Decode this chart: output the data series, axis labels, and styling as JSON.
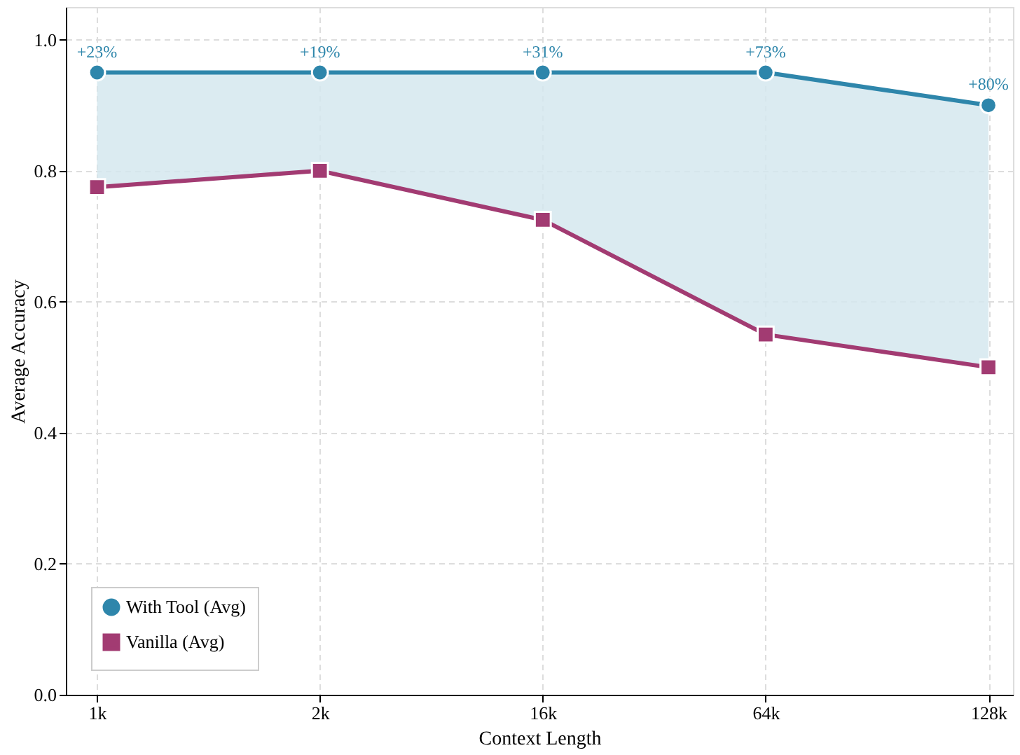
{
  "chart_data": {
    "type": "line",
    "xlabel": "Context Length",
    "ylabel": "Average Accuracy",
    "categories": [
      "1k",
      "2k",
      "16k",
      "64k",
      "128k"
    ],
    "series": [
      {
        "name": "With Tool (Avg)",
        "color": "#2e86ab",
        "marker": "circle",
        "values": [
          0.95,
          0.95,
          0.95,
          0.95,
          0.9
        ],
        "lower": [
          0.775,
          0.8,
          0.725,
          0.55,
          0.5
        ],
        "upper": [
          0.95,
          0.95,
          0.95,
          0.95,
          0.9
        ]
      },
      {
        "name": "Vanilla (Avg)",
        "color": "#a23b72",
        "marker": "square",
        "values": [
          0.775,
          0.8,
          0.725,
          0.55,
          0.5
        ]
      }
    ],
    "annotations": [
      {
        "text": "+23%",
        "x": "1k",
        "y": 0.95
      },
      {
        "text": "+19%",
        "x": "2k",
        "y": 0.95
      },
      {
        "text": "+31%",
        "x": "16k",
        "y": 0.95
      },
      {
        "text": "+73%",
        "x": "64k",
        "y": 0.95
      },
      {
        "text": "+80%",
        "x": "128k",
        "y": 0.9
      }
    ],
    "ylim": [
      0,
      1.05
    ],
    "yticks": [
      {
        "value": 0,
        "label": "0.0"
      },
      {
        "value": 0.2,
        "label": "0.2"
      },
      {
        "value": 0.4,
        "label": "0.4"
      },
      {
        "value": 0.6,
        "label": "0.6"
      },
      {
        "value": 0.8,
        "label": "0.8"
      },
      {
        "value": 1.0,
        "label": "1.0"
      }
    ],
    "grid": true,
    "legend": "bottom left",
    "line_style": "solid"
  }
}
